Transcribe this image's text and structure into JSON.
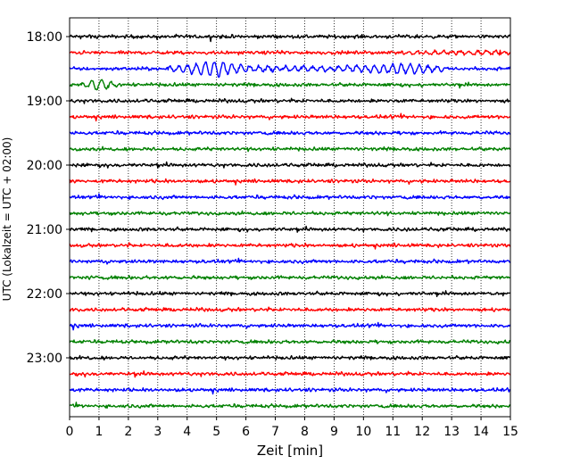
{
  "chart_data": {
    "type": "line",
    "title": "",
    "xlabel": "Zeit  [min]",
    "ylabel": "UTC (Lokalzeit = UTC + 02:00)",
    "xlim": [
      0,
      15
    ],
    "x_ticks": [
      0,
      1,
      2,
      3,
      4,
      5,
      6,
      7,
      8,
      9,
      10,
      11,
      12,
      13,
      14,
      15
    ],
    "y_ticks": [
      "18:00",
      "19:00",
      "20:00",
      "21:00",
      "22:00",
      "23:00"
    ],
    "grid": "vertical dotted lines at each minute",
    "trace_colors_cycle": [
      "#000000",
      "#ff0000",
      "#0000ff",
      "#008000"
    ],
    "trace_interval_minutes": 15,
    "trace_start_times": [
      "18:00",
      "18:15",
      "18:30",
      "18:45",
      "19:00",
      "19:15",
      "19:30",
      "19:45",
      "20:00",
      "20:15",
      "20:30",
      "20:45",
      "21:00",
      "21:15",
      "21:30",
      "21:45",
      "22:00",
      "22:15",
      "22:30",
      "22:45",
      "23:00",
      "23:15",
      "23:30",
      "23:45"
    ],
    "annotations": [
      {
        "trace": "18:30",
        "note": "large oscillation between about 3.5 and 12.5 min, strongest near 4.5–5.5 min"
      },
      {
        "trace": "18:45",
        "note": "larger oscillation near 0.5–1.5 min"
      },
      {
        "trace": "18:15",
        "note": "slightly increased amplitude after about 11 min"
      }
    ]
  }
}
